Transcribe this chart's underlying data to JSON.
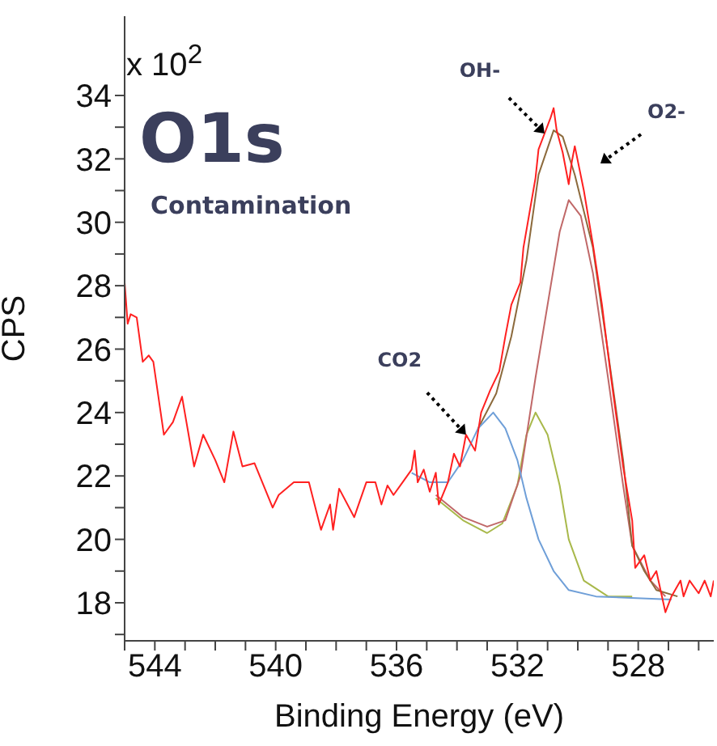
{
  "chart_data": {
    "type": "line",
    "title": "O1s",
    "subtitle": "Contamination",
    "xlabel": "Binding Energy (eV)",
    "ylabel": "CPS",
    "annotations": [
      "x 10$^{2}$",
      {
        "text": "OH-",
        "x": 531.1,
        "y": 32.8
      },
      "O2-",
      {
        "text": "CO2",
        "x": 533.7,
        "y": 23.3
      }
    ],
    "xlim": [
      545,
      525.5
    ],
    "ylim": [
      16.8,
      36.5
    ],
    "xticks": [
      {
        "value": 545,
        "label": null
      },
      544,
      {
        "value": 543,
        "label": null
      },
      {
        "value": 542,
        "label": null
      },
      {
        "value": 541,
        "label": null
      },
      540,
      {
        "value": 539,
        "label": null
      },
      {
        "value": 538,
        "label": null
      },
      {
        "value": 537,
        "label": null
      },
      536,
      {
        "value": 535,
        "label": null
      },
      {
        "value": 534,
        "label": null
      },
      {
        "value": 533,
        "label": null
      },
      532,
      {
        "value": 531,
        "label": null
      },
      {
        "value": 530,
        "label": null
      },
      {
        "value": 529,
        "label": null
      },
      528,
      {
        "value": 527,
        "label": null
      },
      {
        "value": 526,
        "label": null
      }
    ],
    "yticks": [
      {
        "value": 17,
        "label": null
      },
      18,
      {
        "value": 19,
        "label": null
      },
      20,
      {
        "value": 21,
        "label": null
      },
      22,
      {
        "value": 23,
        "label": null
      },
      24,
      {
        "value": 25,
        "label": null
      },
      26,
      {
        "value": 27,
        "label": null
      },
      28,
      {
        "value": 29,
        "label": null
      },
      30,
      {
        "value": 31,
        "label": null
      },
      32,
      {
        "value": 33,
        "label": null
      },
      34
    ],
    "grid": false,
    "legend": false,
    "marker": "none",
    "line_style": "solid",
    "series": [
      {
        "color": "#a8b84a",
        "x": [
          534.7,
          533.8,
          533.0,
          532.5,
          532.0,
          531.7,
          531.4,
          531.0,
          530.6,
          530.3,
          529.8,
          529.0,
          528.2
        ],
        "values": [
          21.3,
          20.6,
          20.2,
          20.5,
          21.7,
          23.3,
          24.0,
          23.3,
          21.7,
          20.0,
          18.7,
          18.2,
          18.2
        ]
      },
      {
        "color": "#c06868",
        "x": [
          534.7,
          533.8,
          533.0,
          532.4,
          531.9,
          531.4,
          531.0,
          530.6,
          530.3,
          529.9,
          529.5,
          529.0,
          528.5,
          528.2,
          527.6,
          527.1
        ],
        "values": [
          21.4,
          20.7,
          20.4,
          20.6,
          22.0,
          25.1,
          27.4,
          29.7,
          30.7,
          30.2,
          28.4,
          25.1,
          21.7,
          19.8,
          18.7,
          18.2
        ]
      },
      {
        "color": "#8c6a3c",
        "x": [
          533.3,
          532.7,
          532.2,
          531.7,
          531.3,
          530.8,
          530.5,
          530.1,
          529.5,
          529.0,
          528.5,
          528.2,
          527.8,
          527.4,
          526.7
        ],
        "values": [
          23.5,
          24.6,
          26.4,
          28.8,
          31.5,
          32.9,
          32.7,
          31.5,
          29.2,
          25.9,
          22.5,
          19.8,
          19.0,
          18.4,
          18.2
        ]
      },
      {
        "color": "#6f9fd8",
        "x": [
          535.5,
          534.9,
          534.3,
          533.8,
          533.3,
          532.8,
          532.4,
          532.0,
          531.7,
          531.3,
          530.8,
          530.3,
          529.4,
          526.9
        ],
        "values": [
          22.1,
          21.8,
          21.8,
          22.5,
          23.5,
          24.0,
          23.5,
          22.5,
          21.3,
          20.0,
          19.0,
          18.4,
          18.2,
          18.1
        ]
      },
      {
        "color": "#ff2020",
        "x": [
          545.0,
          544.9,
          544.8,
          544.6,
          544.4,
          544.2,
          544.05,
          543.7,
          543.4,
          543.1,
          542.7,
          542.4,
          542.0,
          541.7,
          541.4,
          541.1,
          540.7,
          540.1,
          539.9,
          539.4,
          538.9,
          538.5,
          538.2,
          538.1,
          537.9,
          537.4,
          537.0,
          536.7,
          536.5,
          536.3,
          536.1,
          535.8,
          535.5,
          535.4,
          535.3,
          535.1,
          534.9,
          534.7,
          534.6,
          534.3,
          534.1,
          533.9,
          533.7,
          533.4,
          533.2,
          532.9,
          532.6,
          532.4,
          532.2,
          531.9,
          531.8,
          531.6,
          531.4,
          531.3,
          531.1,
          530.9,
          530.8,
          530.7,
          530.5,
          530.3,
          530.2,
          530.1,
          529.8,
          529.5,
          529.2,
          528.9,
          528.5,
          528.2,
          528.1,
          527.8,
          527.6,
          527.4,
          527.1,
          526.9,
          526.6,
          526.5,
          526.3,
          526.0,
          525.8,
          525.6,
          525.5
        ],
        "values": [
          28.1,
          26.8,
          27.1,
          27.0,
          25.6,
          25.8,
          25.6,
          23.3,
          23.7,
          24.5,
          22.3,
          23.3,
          22.5,
          21.8,
          23.4,
          22.3,
          22.4,
          21.0,
          21.4,
          21.8,
          21.8,
          20.3,
          21.1,
          20.3,
          21.6,
          20.7,
          21.8,
          21.8,
          21.1,
          21.7,
          21.4,
          21.8,
          22.2,
          22.8,
          21.8,
          22.2,
          21.5,
          22.1,
          21.1,
          21.8,
          22.7,
          22.3,
          23.3,
          22.8,
          24.0,
          24.7,
          25.3,
          26.4,
          27.4,
          28.1,
          29.2,
          30.3,
          31.4,
          32.3,
          32.8,
          33.3,
          33.6,
          32.9,
          32.2,
          31.2,
          31.9,
          32.4,
          31.0,
          29.3,
          27.4,
          25.1,
          22.3,
          20.6,
          19.1,
          19.5,
          18.7,
          19.0,
          17.7,
          18.2,
          18.7,
          18.2,
          18.7,
          18.3,
          18.7,
          18.2,
          18.7
        ]
      }
    ]
  }
}
